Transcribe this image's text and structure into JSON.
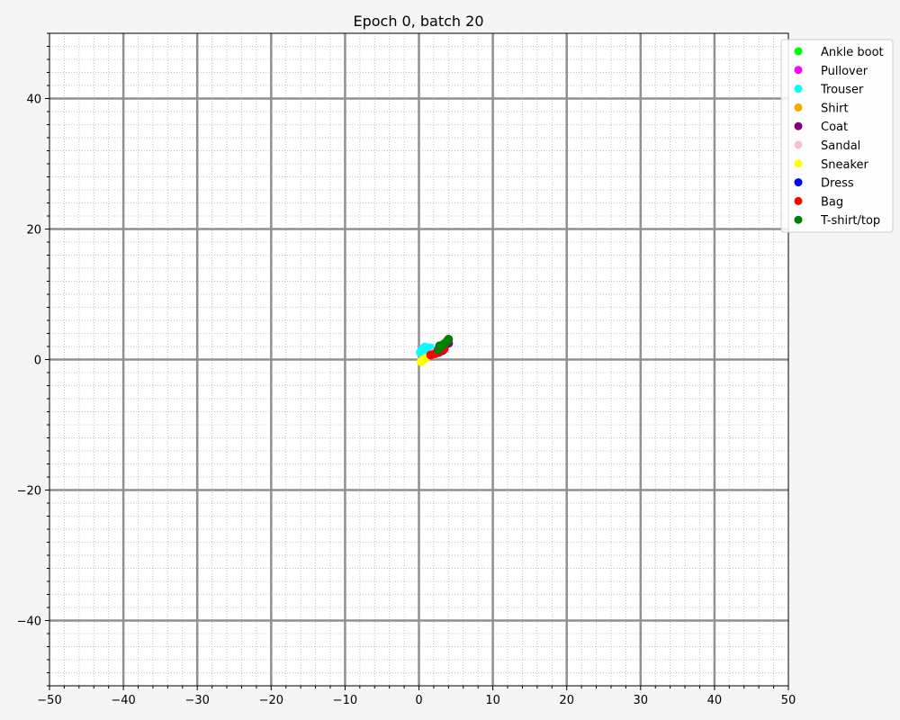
{
  "chart_data": {
    "type": "scatter",
    "title": "Epoch 0, batch 20",
    "xlabel": "",
    "ylabel": "",
    "xlim": [
      -50,
      50
    ],
    "ylim": [
      -50,
      50
    ],
    "xticks": [
      -50,
      -40,
      -30,
      -20,
      -10,
      0,
      10,
      20,
      30,
      40,
      50
    ],
    "yticks": [
      -40,
      -20,
      0,
      20,
      40
    ],
    "major_grid_x_step": 10,
    "major_grid_y_step": 20,
    "minor_grid_step": 2,
    "grid": true,
    "legend_position": "top-right",
    "series": [
      {
        "name": "Ankle boot",
        "color": "#00ff00",
        "x": [
          2.6,
          3.0
        ],
        "y": [
          1.3,
          1.7
        ]
      },
      {
        "name": "Pullover",
        "color": "#ff00ff",
        "x": [
          2.8,
          3.3
        ],
        "y": [
          1.2,
          1.6
        ]
      },
      {
        "name": "Trouser",
        "color": "#00ffff",
        "x": [
          0.2,
          0.5,
          0.8,
          1.1,
          1.5
        ],
        "y": [
          1.1,
          1.6,
          1.9,
          1.5,
          1.8
        ]
      },
      {
        "name": "Shirt",
        "color": "#ffa500",
        "x": [
          2.9,
          3.4
        ],
        "y": [
          1.8,
          2.1
        ]
      },
      {
        "name": "Coat",
        "color": "#800080",
        "x": [
          3.0,
          3.5,
          4.0
        ],
        "y": [
          1.6,
          2.1,
          2.5
        ]
      },
      {
        "name": "Sandal",
        "color": "#ffc0cb",
        "x": [
          1.8,
          2.3
        ],
        "y": [
          0.9,
          1.2
        ]
      },
      {
        "name": "Sneaker",
        "color": "#ffff00",
        "x": [
          0.3,
          0.6,
          0.9
        ],
        "y": [
          -0.3,
          0.0,
          0.2
        ]
      },
      {
        "name": "Dress",
        "color": "#0000ff",
        "x": [
          2.7,
          3.2
        ],
        "y": [
          1.1,
          1.4
        ]
      },
      {
        "name": "Bag",
        "color": "#ff0000",
        "x": [
          1.6,
          2.2,
          2.8,
          3.4
        ],
        "y": [
          0.7,
          0.9,
          1.2,
          1.6
        ]
      },
      {
        "name": "T-shirt/top",
        "color": "#008000",
        "x": [
          2.6,
          3.0,
          3.4,
          3.8,
          4.0,
          2.8
        ],
        "y": [
          1.5,
          2.0,
          2.4,
          2.8,
          3.1,
          2.1
        ]
      }
    ]
  }
}
